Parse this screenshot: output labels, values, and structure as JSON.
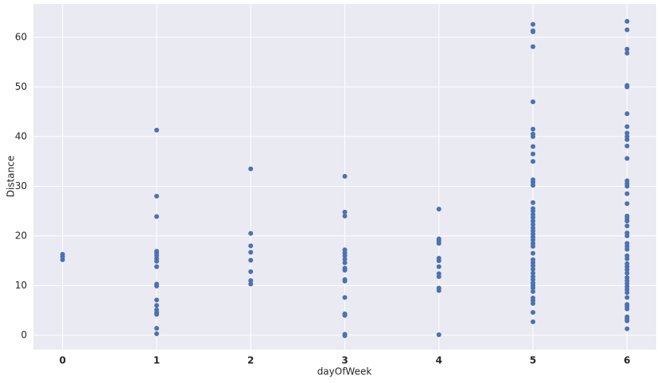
{
  "chart_data": {
    "type": "scatter",
    "x_label": "dayOfWeek",
    "y_label": "Distance",
    "color": "#4c72b0",
    "grid": true,
    "xlim": [
      -0.31,
      6.31
    ],
    "xticks": [
      0,
      1,
      2,
      3,
      4,
      5,
      6
    ],
    "ylim": [
      -2.9,
      66.7
    ],
    "yticks": [
      0,
      10,
      20,
      30,
      40,
      50,
      60
    ],
    "x": [
      0,
      0,
      0,
      1,
      1,
      1,
      1,
      1,
      1,
      1,
      1,
      1,
      1,
      1,
      1,
      1,
      1,
      1,
      1,
      1,
      1,
      2,
      2,
      2,
      2,
      2,
      2,
      2,
      2,
      3,
      3,
      3,
      3,
      3,
      3,
      3,
      3,
      3,
      3,
      3,
      3,
      3,
      3,
      3,
      3,
      3,
      4,
      4,
      4,
      4,
      4,
      4,
      4,
      4,
      4,
      4,
      4,
      4,
      5,
      5,
      5,
      5,
      5,
      5,
      5,
      5,
      5,
      5,
      5,
      5,
      5,
      5,
      5,
      5,
      5,
      5,
      5,
      5,
      5,
      5,
      5,
      5,
      5,
      5,
      5,
      5,
      5,
      5,
      5,
      5,
      5,
      5,
      5,
      5,
      5,
      5,
      5,
      5,
      5,
      5,
      5,
      5,
      5,
      6,
      6,
      6,
      6,
      6,
      6,
      6,
      6,
      6,
      6,
      6,
      6,
      6,
      6,
      6,
      6,
      6,
      6,
      6,
      6,
      6,
      6,
      6,
      6,
      6,
      6,
      6,
      6,
      6,
      6,
      6,
      6,
      6,
      6,
      6,
      6,
      6,
      6,
      6,
      6,
      6,
      6,
      6,
      6,
      6,
      6,
      6
    ],
    "y": [
      16.3,
      15.8,
      15.2,
      41.3,
      28,
      23.9,
      16.9,
      16.5,
      16,
      15.4,
      14.9,
      13.8,
      10.3,
      9.9,
      7.1,
      6,
      5.1,
      4.6,
      4.2,
      1.4,
      0.3,
      33.5,
      20.5,
      18,
      16.7,
      15.1,
      12.8,
      11,
      10.3,
      32,
      24.8,
      24,
      17.2,
      16.6,
      16,
      15.3,
      14.6,
      13.5,
      13.1,
      11.2,
      10.9,
      7.6,
      4.3,
      4,
      0.2,
      -0.1,
      25.4,
      19.4,
      19,
      18.5,
      15.5,
      15,
      13.8,
      12.4,
      11.8,
      9.5,
      9,
      0.1,
      62.6,
      61.3,
      61.1,
      58.1,
      47,
      41.5,
      40.5,
      40,
      38,
      36.5,
      35,
      31.3,
      30.8,
      30.2,
      26.7,
      25.5,
      25,
      24.3,
      23.7,
      23,
      22.3,
      21.6,
      21,
      20.4,
      19.8,
      19.2,
      18.5,
      17.9,
      16.5,
      15.2,
      14.6,
      14,
      13.3,
      12.5,
      11.8,
      11.2,
      10.5,
      10,
      9.5,
      8.8,
      7.5,
      7,
      6.4,
      4.6,
      2.7,
      63.2,
      61.5,
      57.6,
      56.8,
      50.3,
      50,
      44.6,
      42,
      40.7,
      40,
      39.4,
      38.1,
      35.6,
      31.1,
      30.5,
      30,
      28.5,
      26.5,
      24,
      23.5,
      23,
      22,
      20.6,
      20,
      18.5,
      17.9,
      17.3,
      16,
      15.4,
      14.4,
      13.8,
      13.2,
      12.5,
      11.6,
      11,
      10.4,
      9.8,
      9.2,
      8.6,
      7.6,
      6.2,
      5.8,
      5.3,
      3.7,
      3.3,
      2.9,
      1.3
    ]
  }
}
